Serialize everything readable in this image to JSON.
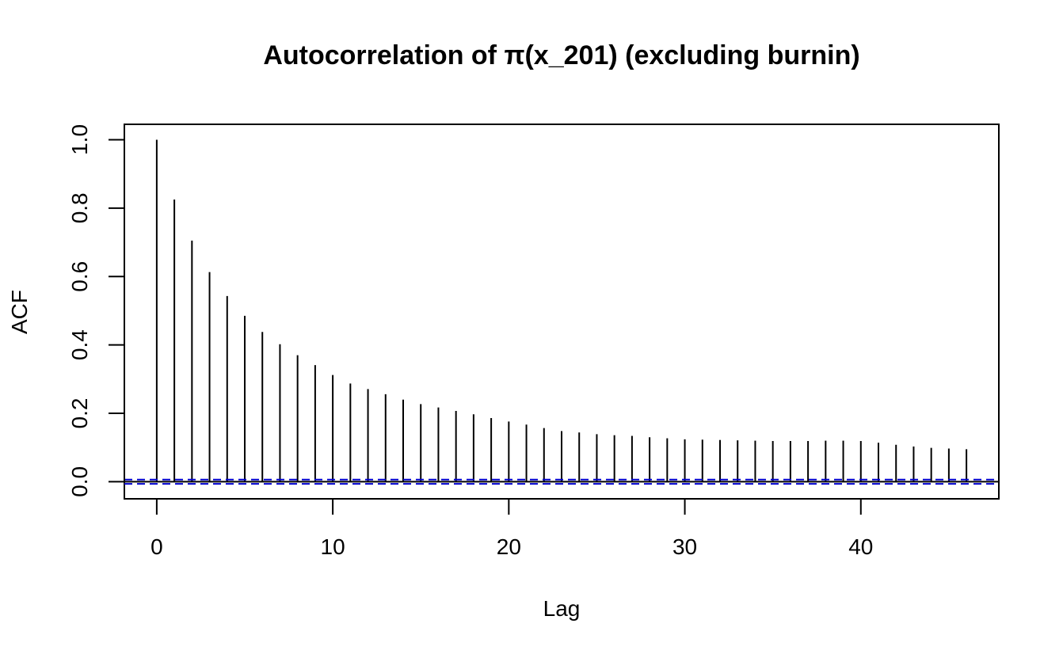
{
  "chart_data": {
    "type": "bar",
    "title": "Autocorrelation of π(x_201) (excluding burnin)",
    "xlabel": "Lag",
    "ylabel": "ACF",
    "xlim": [
      -1.84,
      47.84
    ],
    "ylim": [
      -0.05,
      1.045
    ],
    "x_ticks": [
      0,
      10,
      20,
      30,
      40
    ],
    "x_tick_labels": [
      "0",
      "10",
      "20",
      "30",
      "40"
    ],
    "y_ticks": [
      0.0,
      0.2,
      0.4,
      0.6,
      0.8,
      1.0
    ],
    "y_tick_labels": [
      "0.0",
      "0.2",
      "0.4",
      "0.6",
      "0.8",
      "1.0"
    ],
    "grid": false,
    "lags": [
      0,
      1,
      2,
      3,
      4,
      5,
      6,
      7,
      8,
      9,
      10,
      11,
      12,
      13,
      14,
      15,
      16,
      17,
      18,
      19,
      20,
      21,
      22,
      23,
      24,
      25,
      26,
      27,
      28,
      29,
      30,
      31,
      32,
      33,
      34,
      35,
      36,
      37,
      38,
      39,
      40,
      41,
      42,
      43,
      44,
      45,
      46
    ],
    "values": [
      1.0,
      0.825,
      0.705,
      0.613,
      0.543,
      0.485,
      0.438,
      0.402,
      0.37,
      0.341,
      0.312,
      0.287,
      0.271,
      0.256,
      0.24,
      0.227,
      0.217,
      0.207,
      0.197,
      0.186,
      0.176,
      0.167,
      0.157,
      0.148,
      0.144,
      0.139,
      0.136,
      0.134,
      0.13,
      0.127,
      0.124,
      0.123,
      0.122,
      0.121,
      0.12,
      0.119,
      0.119,
      0.119,
      0.12,
      0.12,
      0.119,
      0.114,
      0.108,
      0.103,
      0.099,
      0.097,
      0.095
    ],
    "confidence_bound": 0.0062,
    "bar_color": "#000000",
    "zero_line_color": "#000000",
    "confidence_line_color": "#0000CD"
  }
}
